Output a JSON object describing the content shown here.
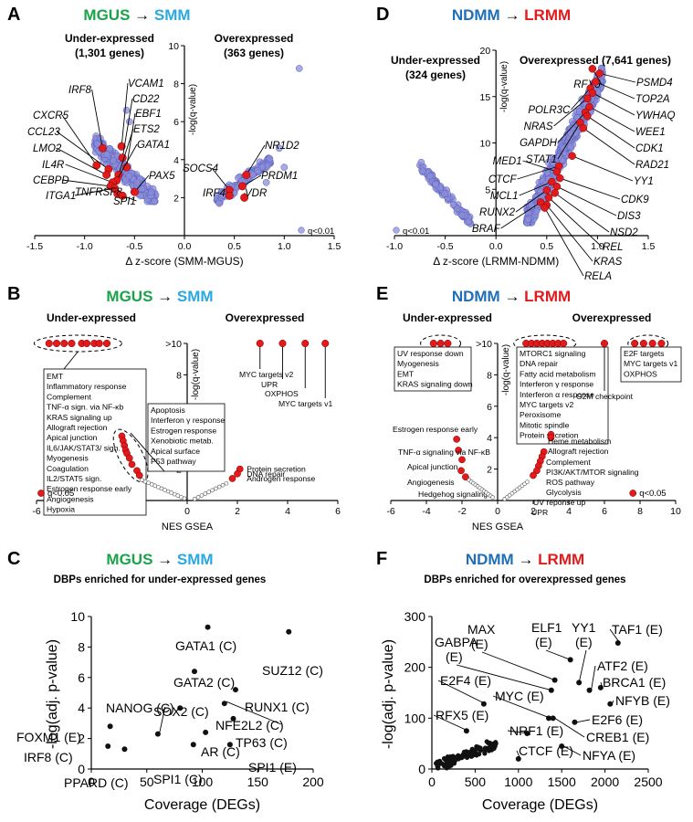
{
  "colors": {
    "green": "#1aa34a",
    "cyan": "#29a9e0",
    "blue": "#1f6fb8",
    "red": "#e31a1c",
    "scatter": "#8c8fd6",
    "scatter_edge": "#5a5fc4",
    "highlight": "#e31a1c"
  },
  "arrow_glyph": "→",
  "chart_data": [
    {
      "panel": "A",
      "type": "scatter",
      "title_from": "MGUS",
      "title_to": "SMM",
      "xlabel": "Δ z-score (SMM-MGUS)",
      "ylabel": "-log(q-value)",
      "xlim": [
        -1.5,
        1.5
      ],
      "ylim": [
        0,
        10
      ],
      "xticks": [
        "-1.5",
        "-1.0",
        "-0.5",
        "0.0",
        "0.5",
        "1.0",
        "1.5"
      ],
      "yticks": [
        "2",
        "4",
        "6",
        "8",
        "10"
      ],
      "left_label": [
        "Under-expressed",
        "(1,301 genes)"
      ],
      "right_label": [
        "Overexpressed",
        "(363 genes)"
      ],
      "legend": "q<0.01",
      "genes": [
        {
          "name": "IRF8",
          "x": -0.82,
          "y": 4.6
        },
        {
          "name": "VCAM1",
          "x": -0.63,
          "y": 4.7
        },
        {
          "name": "CD22",
          "x": -0.62,
          "y": 4.1
        },
        {
          "name": "CXCR5",
          "x": -0.88,
          "y": 3.7
        },
        {
          "name": "EBF1",
          "x": -0.58,
          "y": 3.6
        },
        {
          "name": "CCL23",
          "x": -0.76,
          "y": 3.5
        },
        {
          "name": "ETS2",
          "x": -0.66,
          "y": 3.2
        },
        {
          "name": "LMO2",
          "x": -0.78,
          "y": 3.2
        },
        {
          "name": "GATA1",
          "x": -0.68,
          "y": 2.9
        },
        {
          "name": "IL4R",
          "x": -0.72,
          "y": 2.8
        },
        {
          "name": "CEBPD",
          "x": -0.74,
          "y": 2.6
        },
        {
          "name": "ITGA1",
          "x": -0.7,
          "y": 2.5
        },
        {
          "name": "PAX5",
          "x": -0.5,
          "y": 2.3
        },
        {
          "name": "TNFRSF8",
          "x": -0.67,
          "y": 2.2
        },
        {
          "name": "SPI1",
          "x": -0.62,
          "y": 2.1
        },
        {
          "name": "SOCS4",
          "x": 0.45,
          "y": 2.4
        },
        {
          "name": "NR1D2",
          "x": 0.62,
          "y": 3.2
        },
        {
          "name": "PRDM1",
          "x": 0.58,
          "y": 2.6
        },
        {
          "name": "IRF4",
          "x": 0.45,
          "y": 2.1
        },
        {
          "name": "VDR",
          "x": 0.6,
          "y": 2.0
        }
      ]
    },
    {
      "panel": "D",
      "type": "scatter",
      "title_from": "NDMM",
      "title_to": "LRMM",
      "xlabel": "Δ z-score (LRMM-NDMM)",
      "ylabel": "-log(q-value)",
      "xlim": [
        -1.0,
        1.5
      ],
      "ylim": [
        0,
        20
      ],
      "xticks": [
        "-1.0",
        "-0.5",
        "0.0",
        "0.5",
        "1.0",
        "1.5"
      ],
      "yticks": [
        "5",
        "10",
        "15",
        "20"
      ],
      "left_label": [
        "Under-expressed",
        "(324 genes)"
      ],
      "right_label": [
        "Overexpressed (7,641 genes)"
      ],
      "legend": "q<0.01",
      "genes": [
        {
          "name": "RFX5",
          "x": 0.95,
          "y": 18.0
        },
        {
          "name": "PSMD4",
          "x": 1.02,
          "y": 17.5
        },
        {
          "name": "TOP2A",
          "x": 0.98,
          "y": 16.6
        },
        {
          "name": "POLR3C",
          "x": 0.93,
          "y": 15.9
        },
        {
          "name": "YWHAQ",
          "x": 0.95,
          "y": 15.4
        },
        {
          "name": "NRAS",
          "x": 0.9,
          "y": 14.8
        },
        {
          "name": "WEE1",
          "x": 0.92,
          "y": 13.9
        },
        {
          "name": "GAPDH",
          "x": 0.88,
          "y": 13.3
        },
        {
          "name": "CDK1",
          "x": 0.9,
          "y": 12.9
        },
        {
          "name": "STAT1",
          "x": 0.83,
          "y": 12.2
        },
        {
          "name": "RAD21",
          "x": 0.86,
          "y": 11.6
        },
        {
          "name": "CTCF",
          "x": 0.62,
          "y": 7.5
        },
        {
          "name": "YY1",
          "x": 0.75,
          "y": 8.6
        },
        {
          "name": "MED1",
          "x": 0.6,
          "y": 6.9
        },
        {
          "name": "CDK9",
          "x": 0.63,
          "y": 6.2
        },
        {
          "name": "MCL1",
          "x": 0.55,
          "y": 5.8
        },
        {
          "name": "DIS3",
          "x": 0.6,
          "y": 5.3
        },
        {
          "name": "RUNX2",
          "x": 0.5,
          "y": 4.9
        },
        {
          "name": "NSD2",
          "x": 0.58,
          "y": 4.6
        },
        {
          "name": "REL",
          "x": 0.52,
          "y": 4.1
        },
        {
          "name": "BRAF",
          "x": 0.44,
          "y": 3.6
        },
        {
          "name": "KRAS",
          "x": 0.5,
          "y": 3.3
        },
        {
          "name": "RELA",
          "x": 0.48,
          "y": 3.0
        }
      ]
    },
    {
      "panel": "B",
      "type": "scatter",
      "title_from": "MGUS",
      "title_to": "SMM",
      "xlabel": "NES GSEA",
      "ylabel": "-log(q-value)",
      "xlim": [
        -6,
        6
      ],
      "ylim": [
        0,
        10
      ],
      "xticks": [
        "-6",
        "-4",
        "-2",
        "0",
        "2",
        "4",
        "6"
      ],
      "yticks": [
        "2",
        "4",
        "6",
        "8",
        ">10"
      ],
      "left_label": [
        "Under-expressed"
      ],
      "right_label": [
        "Overexpressed"
      ],
      "legend": "q<0.05",
      "box1": [
        "EMT",
        "Inflammatory response",
        "Complement",
        "TNF-α sign. via NF-κb",
        "KRAS signaling up",
        "Allograft rejection",
        "Apical junction",
        "IL6/JAK/STAT3/ sign.",
        "Myogenesis",
        "Coagulation",
        "IL2/STAT5 sign.",
        "Estrogen response early",
        "Angiogenesis",
        "Hypoxia"
      ],
      "box2": [
        "Apoptosis",
        "Interferon γ response",
        "Estrogen response",
        "Xenobiotic metab.",
        "Apical surface",
        "P53 pathway"
      ],
      "top_right_labels": [
        "MYC targets v2",
        "UPR",
        "OXPHOS",
        "MYC targets v1"
      ],
      "low_right_labels": [
        "Protein secretion",
        "DNA repair",
        "Androgen response"
      ]
    },
    {
      "panel": "E",
      "type": "scatter",
      "title_from": "NDMM",
      "title_to": "LRMM",
      "xlabel": "NES GSEA",
      "ylabel": "-log(q-value)",
      "xlim": [
        -6,
        10
      ],
      "ylim": [
        0,
        10
      ],
      "xticks": [
        "-6",
        "-4",
        "-2",
        "0",
        "2",
        "4",
        "6",
        "8",
        "10"
      ],
      "yticks": [
        "2",
        "4",
        "6",
        "8",
        ">10"
      ],
      "left_label": [
        "Under-expressed"
      ],
      "right_label": [
        "Overexpressed"
      ],
      "legend": "q<0.05",
      "box1": [
        "UV response down",
        "Myogenesis",
        "EMT",
        "KRAS signaling down"
      ],
      "box2": [
        "MTORC1 signaling",
        "DNA repair",
        "Fatty acid metabolism",
        "Interferon γ response",
        "Interferon α response",
        "MYC targets v2",
        "Peroxisome",
        "Mitotic spindle",
        "Protein secretion"
      ],
      "box3": [
        "E2F targets",
        "MYC targets v1",
        "OXPHOS"
      ],
      "g2m": "G2M checkpoint",
      "left_points": [
        "Estrogen response early",
        "TNF-α signaling via NF-κB",
        "Apical junction",
        "Angiogenesis",
        "Hedgehog signaling"
      ],
      "right_points": [
        "Heme metabolism",
        "Allograft rejection",
        "Complement",
        "PI3K/AKT/MTOR signaling",
        "ROS pathway",
        "Glycolysis",
        "UV reponse up",
        "UPR"
      ]
    },
    {
      "panel": "C",
      "type": "scatter",
      "title_from": "MGUS",
      "title_to": "SMM",
      "subtitle": "DBPs enriched for under-expressed genes",
      "xlabel": "Coverage (DEGs)",
      "ylabel": "-log(adj. p-value)",
      "xlim": [
        0,
        200
      ],
      "ylim": [
        0,
        10
      ],
      "xticks": [
        "0",
        "50",
        "100",
        "150",
        "200"
      ],
      "yticks": [
        "0",
        "2",
        "4",
        "6",
        "8",
        "10"
      ],
      "points": [
        {
          "label": "GATA1 (C)",
          "x": 105,
          "y": 9.3
        },
        {
          "label": "SUZ12 (C)",
          "x": 178,
          "y": 9.0
        },
        {
          "label": "GATA2 (C)",
          "x": 93,
          "y": 6.4
        },
        {
          "label": "RUNX1 (C)",
          "x": 130,
          "y": 5.2
        },
        {
          "label": "SOX2 (C)",
          "x": 80,
          "y": 4.0
        },
        {
          "label": "NFE2L2 (C)",
          "x": 120,
          "y": 4.3
        },
        {
          "label": "NANOG (C)",
          "x": 60,
          "y": 2.3
        },
        {
          "label": "TP63 (C)",
          "x": 128,
          "y": 3.3
        },
        {
          "label": "AR (C)",
          "x": 103,
          "y": 2.4
        },
        {
          "label": "FOXM1 (E)",
          "x": 17,
          "y": 2.8
        },
        {
          "label": "IRF8 (C)",
          "x": 15,
          "y": 1.5
        },
        {
          "label": "SPI1 (C)",
          "x": 92,
          "y": 1.6
        },
        {
          "label": "SPI1 (E)",
          "x": 125,
          "y": 1.6
        },
        {
          "label": "PPARD (C)",
          "x": 30,
          "y": 1.3
        }
      ]
    },
    {
      "panel": "F",
      "type": "scatter",
      "title_from": "NDMM",
      "title_to": "LRMM",
      "subtitle": "DBPs enriched for overexpressed genes",
      "xlabel": "Coverage (DEGs)",
      "ylabel": "-log(adj. p-value)",
      "xlim": [
        0,
        2500
      ],
      "ylim": [
        0,
        300
      ],
      "xticks": [
        "0",
        "500",
        "1000",
        "1500",
        "2000",
        "2500"
      ],
      "yticks": [
        "0",
        "100",
        "200",
        "300"
      ],
      "points": [
        {
          "label": "ELF1 (E)",
          "x": 1600,
          "y": 215
        },
        {
          "label": "MAX (E)",
          "x": 1420,
          "y": 175
        },
        {
          "label": "YY1 (E)",
          "x": 1700,
          "y": 170
        },
        {
          "label": "TAF1 (E)",
          "x": 2150,
          "y": 248
        },
        {
          "label": "GABPA (E)",
          "x": 1380,
          "y": 155
        },
        {
          "label": "ATF2 (E)",
          "x": 1820,
          "y": 155
        },
        {
          "label": "BRCA1 (E)",
          "x": 1950,
          "y": 160
        },
        {
          "label": "NFYB (E)",
          "x": 2060,
          "y": 128
        },
        {
          "label": "E2F4 (E)",
          "x": 600,
          "y": 128
        },
        {
          "label": "MYC (E)",
          "x": 1350,
          "y": 100
        },
        {
          "label": "E2F6 (E)",
          "x": 1650,
          "y": 92
        },
        {
          "label": "RFX5 (E)",
          "x": 400,
          "y": 75
        },
        {
          "label": "NRF1 (E)",
          "x": 1100,
          "y": 70
        },
        {
          "label": "CREB1 (E)",
          "x": 1400,
          "y": 100
        },
        {
          "label": "NFYA (E)",
          "x": 1500,
          "y": 45
        },
        {
          "label": "CTCF (E)",
          "x": 1000,
          "y": 20
        }
      ]
    }
  ]
}
